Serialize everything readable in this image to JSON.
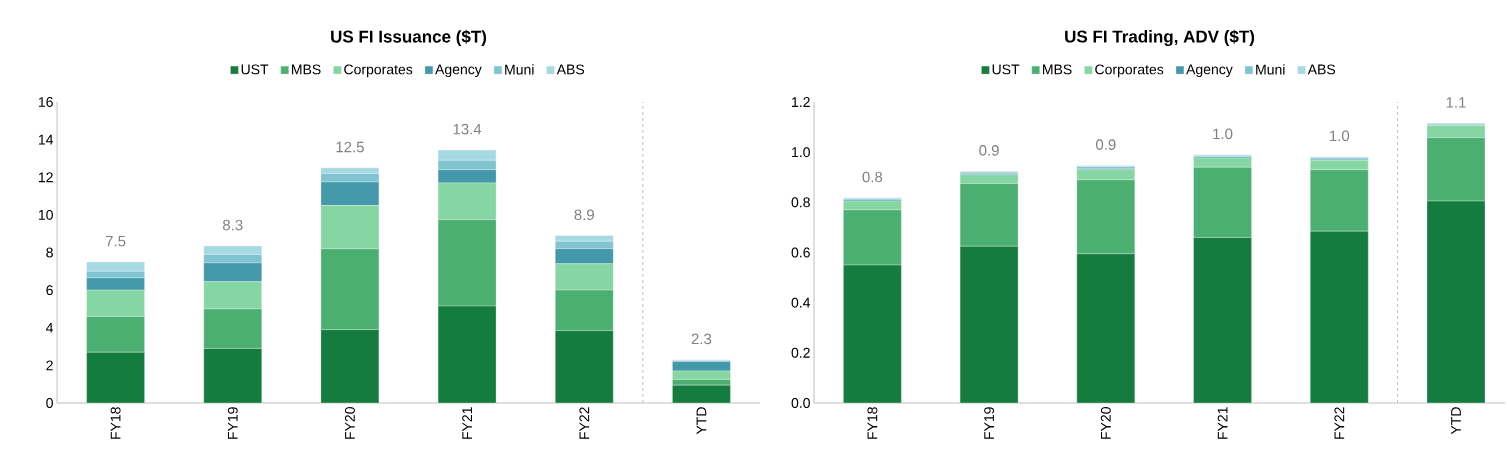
{
  "chart_data": [
    {
      "type": "bar",
      "title": "US FI Issuance ($T)",
      "stacked": true,
      "legend": "top",
      "categories": [
        "FY18",
        "FY19",
        "FY20",
        "FY21",
        "FY22",
        "YTD"
      ],
      "series": [
        {
          "name": "UST",
          "color": "#147c3e",
          "values": [
            2.7,
            2.9,
            3.9,
            5.15,
            3.85,
            0.95
          ]
        },
        {
          "name": "MBS",
          "color": "#4caf72",
          "values": [
            1.9,
            2.1,
            4.3,
            4.6,
            2.15,
            0.3
          ]
        },
        {
          "name": "Corporates",
          "color": "#85d6a2",
          "values": [
            1.4,
            1.45,
            2.3,
            1.95,
            1.4,
            0.45
          ]
        },
        {
          "name": "Agency",
          "color": "#4398aa",
          "values": [
            0.65,
            1.0,
            1.25,
            0.7,
            0.8,
            0.5
          ]
        },
        {
          "name": "Muni",
          "color": "#7fc4d0",
          "values": [
            0.35,
            0.45,
            0.45,
            0.5,
            0.4,
            0.05
          ]
        },
        {
          "name": "ABS",
          "color": "#a6d9e2",
          "values": [
            0.5,
            0.45,
            0.3,
            0.55,
            0.3,
            0.05
          ]
        }
      ],
      "totals": [
        "7.5",
        "8.3",
        "12.5",
        "13.4",
        "8.9",
        "2.3"
      ],
      "ylim": [
        0,
        16
      ],
      "yticks": [
        0,
        2,
        4,
        6,
        8,
        10,
        12,
        14,
        16
      ]
    },
    {
      "type": "bar",
      "title": "US FI Trading, ADV ($T)",
      "stacked": true,
      "legend": "top",
      "categories": [
        "FY18",
        "FY19",
        "FY20",
        "FY21",
        "FY22",
        "YTD"
      ],
      "series": [
        {
          "name": "UST",
          "color": "#147c3e",
          "values": [
            0.55,
            0.625,
            0.595,
            0.66,
            0.685,
            0.805
          ]
        },
        {
          "name": "MBS",
          "color": "#4caf72",
          "values": [
            0.22,
            0.25,
            0.295,
            0.28,
            0.245,
            0.253
          ]
        },
        {
          "name": "Corporates",
          "color": "#85d6a2",
          "values": [
            0.035,
            0.035,
            0.04,
            0.037,
            0.038,
            0.048
          ]
        },
        {
          "name": "Agency",
          "color": "#4398aa",
          "values": [
            0.004,
            0.005,
            0.005,
            0.004,
            0.004,
            0.003
          ]
        },
        {
          "name": "Muni",
          "color": "#7fc4d0",
          "values": [
            0.005,
            0.005,
            0.007,
            0.004,
            0.006,
            0.003
          ]
        },
        {
          "name": "ABS",
          "color": "#a6d9e2",
          "values": [
            0.004,
            0.004,
            0.005,
            0.005,
            0.004,
            0.004
          ]
        }
      ],
      "totals": [
        "0.8",
        "0.9",
        "0.9",
        "1.0",
        "1.0",
        "1.1"
      ],
      "ylim": [
        0,
        1.2
      ],
      "yticks": [
        {
          "value": 0,
          "label": "0.0"
        },
        {
          "value": 0.2,
          "label": "0.2"
        },
        {
          "value": 0.4,
          "label": "0.4"
        },
        {
          "value": 0.6,
          "label": "0.6"
        },
        {
          "value": 0.8,
          "label": "0.8"
        },
        {
          "value": 1.0,
          "label": "1.0"
        },
        {
          "value": 1.2,
          "label": "1.2"
        }
      ]
    }
  ]
}
